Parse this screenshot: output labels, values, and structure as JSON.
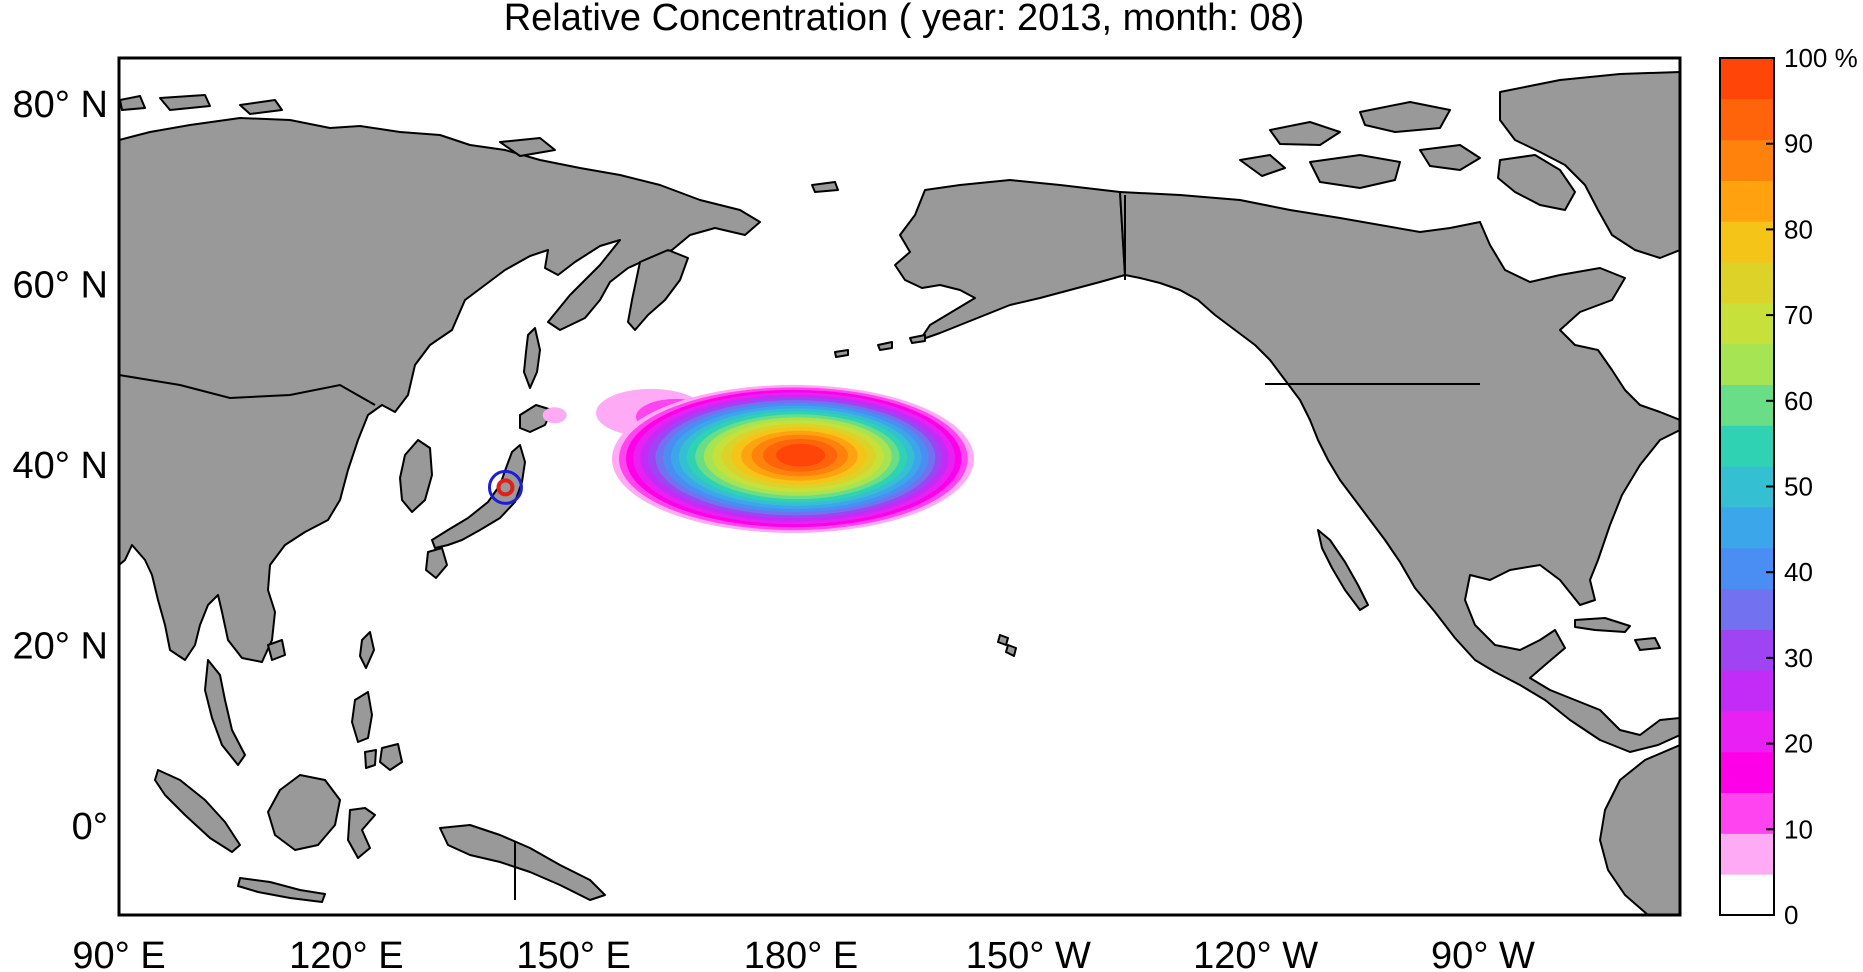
{
  "title": "Relative Concentration ( year: 2013, month: 08)",
  "map": {
    "lat_labels": [
      {
        "lat": 80,
        "text": "80° N"
      },
      {
        "lat": 60,
        "text": "60° N"
      },
      {
        "lat": 40,
        "text": "40° N"
      },
      {
        "lat": 20,
        "text": "20° N"
      },
      {
        "lat": 0,
        "text": "0°"
      }
    ],
    "lon_labels": [
      {
        "lon": 90,
        "text": "90° E"
      },
      {
        "lon": 120,
        "text": "120° E"
      },
      {
        "lon": 150,
        "text": "150° E"
      },
      {
        "lon": 180,
        "text": "180° E"
      },
      {
        "lon": 210,
        "text": "150° W"
      },
      {
        "lon": 240,
        "text": "120° W"
      },
      {
        "lon": 270,
        "text": "90° W"
      }
    ],
    "land_color": "#999999",
    "ocean_color": "#ffffff",
    "source_marker": {
      "lon": 141.0,
      "lat": 37.4,
      "outer_color": "#1c1cdc",
      "inner_color": "#e0201c"
    },
    "plume": {
      "center_lon": 180,
      "center_lat": 41,
      "peak_percent": 100
    }
  },
  "colorbar": {
    "unit": "%",
    "tick_labels": [
      "0",
      "10",
      "20",
      "30",
      "40",
      "50",
      "60",
      "70",
      "80",
      "90",
      "100 %"
    ],
    "tick_values": [
      0,
      10,
      20,
      30,
      40,
      50,
      60,
      70,
      80,
      90,
      100
    ],
    "colors": [
      "#ffffff",
      "#ffaaf4",
      "#ff44f0",
      "#fe00e8",
      "#e820f4",
      "#c32cf6",
      "#9e44f2",
      "#7272f0",
      "#4a8ef4",
      "#3ca6ea",
      "#34c0d2",
      "#30d2b4",
      "#6ade86",
      "#a6e454",
      "#c8e03a",
      "#dcd228",
      "#f5c419",
      "#fea30f",
      "#fe820b",
      "#ff640a",
      "#ff4608"
    ]
  }
}
